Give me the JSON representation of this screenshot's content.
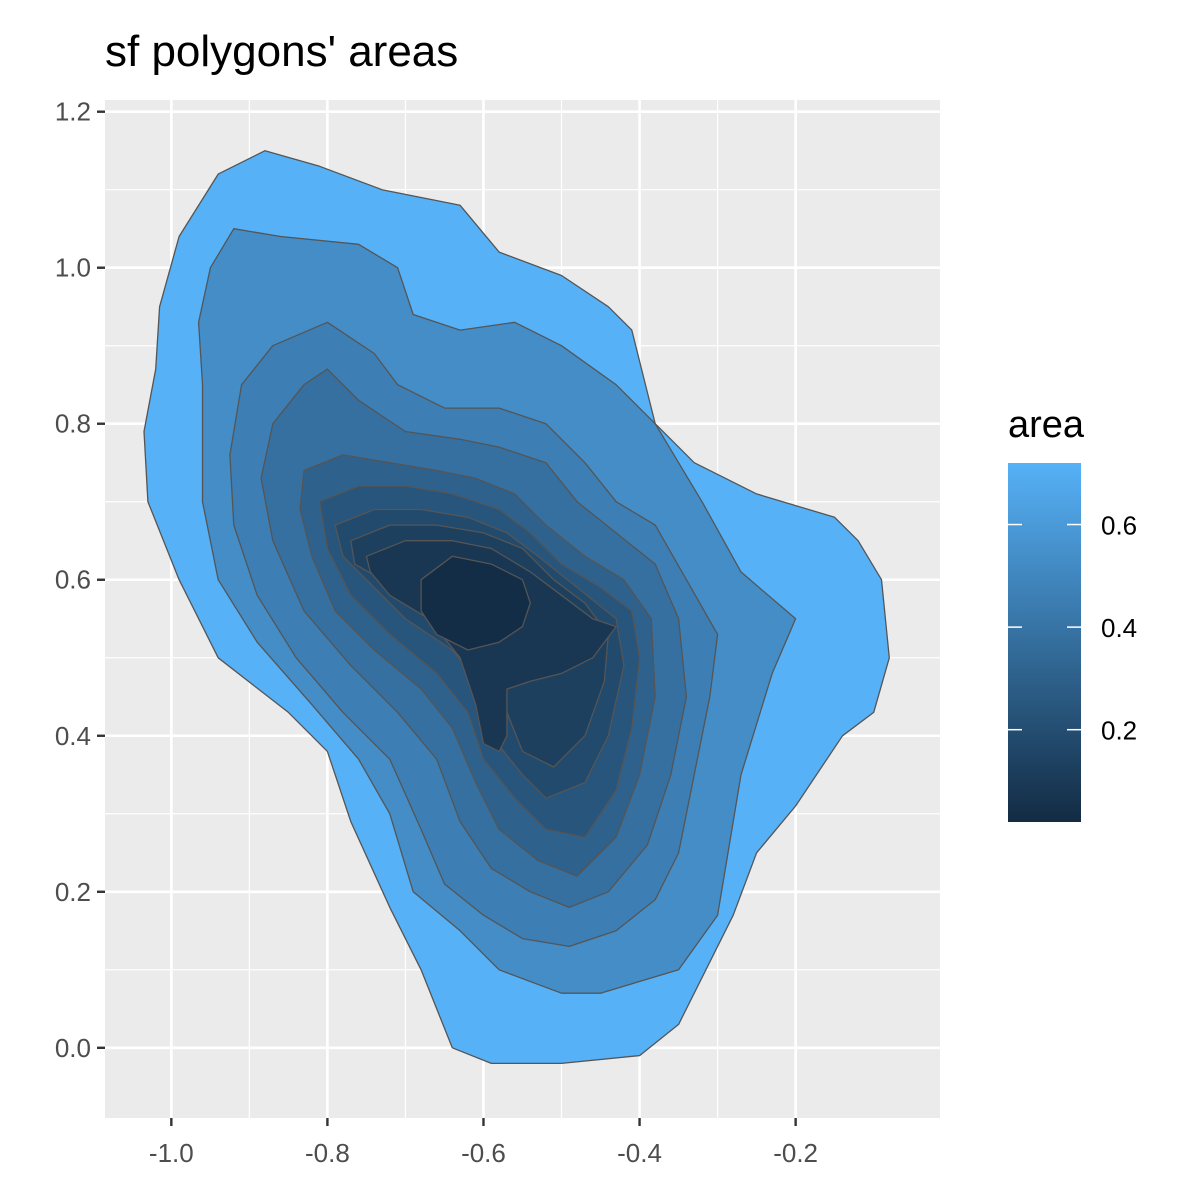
{
  "chart_data": {
    "type": "contour",
    "title": "sf polygons' areas",
    "xlabel": "",
    "ylabel": "",
    "xlim": [
      -1.085,
      -0.015
    ],
    "ylim": [
      -0.09,
      1.215
    ],
    "x_ticks": [
      -1.0,
      -0.8,
      -0.6,
      -0.4,
      -0.2
    ],
    "x_tick_labels": [
      "-1.0",
      "-0.8",
      "-0.6",
      "-0.4",
      "-0.2"
    ],
    "y_ticks": [
      0.0,
      0.2,
      0.4,
      0.6,
      0.8,
      1.0,
      1.2
    ],
    "y_tick_labels": [
      "0.0",
      "0.2",
      "0.4",
      "0.6",
      "0.8",
      "1.0",
      "1.2"
    ],
    "grid": true,
    "panel_background": "#ebebeb",
    "grid_color": "#ffffff",
    "outline_color": "#555555",
    "legend": {
      "title": "area",
      "position": "right",
      "min": 0.02,
      "max": 0.72,
      "ticks": [
        0.2,
        0.4,
        0.6
      ],
      "tick_labels": [
        "0.2",
        "0.4",
        "0.6"
      ],
      "color_low": "#132b43",
      "color_high": "#56b1f7"
    },
    "polygons": [
      {
        "area": 0.72,
        "points": [
          [
            -0.99,
            1.04
          ],
          [
            -0.94,
            1.12
          ],
          [
            -0.88,
            1.15
          ],
          [
            -0.81,
            1.13
          ],
          [
            -0.73,
            1.1
          ],
          [
            -0.63,
            1.08
          ],
          [
            -0.58,
            1.02
          ],
          [
            -0.5,
            0.99
          ],
          [
            -0.44,
            0.95
          ],
          [
            -0.41,
            0.92
          ],
          [
            -0.38,
            0.8
          ],
          [
            -0.33,
            0.75
          ],
          [
            -0.25,
            0.71
          ],
          [
            -0.15,
            0.68
          ],
          [
            -0.12,
            0.65
          ],
          [
            -0.09,
            0.6
          ],
          [
            -0.08,
            0.5
          ],
          [
            -0.1,
            0.43
          ],
          [
            -0.14,
            0.4
          ],
          [
            -0.2,
            0.31
          ],
          [
            -0.25,
            0.25
          ],
          [
            -0.28,
            0.17
          ],
          [
            -0.35,
            0.03
          ],
          [
            -0.4,
            -0.01
          ],
          [
            -0.5,
            -0.02
          ],
          [
            -0.59,
            -0.02
          ],
          [
            -0.64,
            0.0
          ],
          [
            -0.68,
            0.1
          ],
          [
            -0.72,
            0.18
          ],
          [
            -0.77,
            0.29
          ],
          [
            -0.8,
            0.38
          ],
          [
            -0.85,
            0.43
          ],
          [
            -0.94,
            0.5
          ],
          [
            -0.99,
            0.6
          ],
          [
            -1.03,
            0.7
          ],
          [
            -1.035,
            0.79
          ],
          [
            -1.02,
            0.87
          ],
          [
            -1.015,
            0.95
          ]
        ]
      },
      {
        "area": 0.53,
        "points": [
          [
            -0.95,
            1.0
          ],
          [
            -0.92,
            1.05
          ],
          [
            -0.86,
            1.04
          ],
          [
            -0.76,
            1.03
          ],
          [
            -0.71,
            1.0
          ],
          [
            -0.69,
            0.94
          ],
          [
            -0.63,
            0.92
          ],
          [
            -0.56,
            0.93
          ],
          [
            -0.5,
            0.9
          ],
          [
            -0.43,
            0.85
          ],
          [
            -0.38,
            0.8
          ],
          [
            -0.32,
            0.7
          ],
          [
            -0.27,
            0.61
          ],
          [
            -0.2,
            0.55
          ],
          [
            -0.23,
            0.48
          ],
          [
            -0.27,
            0.35
          ],
          [
            -0.3,
            0.17
          ],
          [
            -0.35,
            0.1
          ],
          [
            -0.45,
            0.07
          ],
          [
            -0.5,
            0.07
          ],
          [
            -0.58,
            0.1
          ],
          [
            -0.63,
            0.15
          ],
          [
            -0.69,
            0.2
          ],
          [
            -0.72,
            0.3
          ],
          [
            -0.76,
            0.37
          ],
          [
            -0.82,
            0.44
          ],
          [
            -0.89,
            0.52
          ],
          [
            -0.94,
            0.6
          ],
          [
            -0.96,
            0.7
          ],
          [
            -0.96,
            0.85
          ],
          [
            -0.965,
            0.93
          ]
        ]
      },
      {
        "area": 0.46,
        "points": [
          [
            -0.91,
            0.85
          ],
          [
            -0.87,
            0.9
          ],
          [
            -0.8,
            0.93
          ],
          [
            -0.74,
            0.89
          ],
          [
            -0.71,
            0.85
          ],
          [
            -0.65,
            0.82
          ],
          [
            -0.58,
            0.82
          ],
          [
            -0.52,
            0.8
          ],
          [
            -0.47,
            0.75
          ],
          [
            -0.43,
            0.7
          ],
          [
            -0.38,
            0.67
          ],
          [
            -0.34,
            0.6
          ],
          [
            -0.3,
            0.53
          ],
          [
            -0.31,
            0.45
          ],
          [
            -0.33,
            0.35
          ],
          [
            -0.35,
            0.25
          ],
          [
            -0.38,
            0.19
          ],
          [
            -0.43,
            0.15
          ],
          [
            -0.49,
            0.13
          ],
          [
            -0.55,
            0.14
          ],
          [
            -0.6,
            0.17
          ],
          [
            -0.65,
            0.21
          ],
          [
            -0.68,
            0.28
          ],
          [
            -0.72,
            0.37
          ],
          [
            -0.78,
            0.43
          ],
          [
            -0.84,
            0.5
          ],
          [
            -0.89,
            0.58
          ],
          [
            -0.92,
            0.67
          ],
          [
            -0.925,
            0.76
          ]
        ]
      },
      {
        "area": 0.38,
        "points": [
          [
            -0.87,
            0.8
          ],
          [
            -0.83,
            0.85
          ],
          [
            -0.8,
            0.87
          ],
          [
            -0.76,
            0.83
          ],
          [
            -0.7,
            0.79
          ],
          [
            -0.63,
            0.78
          ],
          [
            -0.58,
            0.77
          ],
          [
            -0.52,
            0.75
          ],
          [
            -0.48,
            0.7
          ],
          [
            -0.43,
            0.66
          ],
          [
            -0.38,
            0.62
          ],
          [
            -0.35,
            0.55
          ],
          [
            -0.34,
            0.45
          ],
          [
            -0.36,
            0.35
          ],
          [
            -0.39,
            0.26
          ],
          [
            -0.44,
            0.2
          ],
          [
            -0.49,
            0.18
          ],
          [
            -0.54,
            0.2
          ],
          [
            -0.59,
            0.23
          ],
          [
            -0.63,
            0.29
          ],
          [
            -0.66,
            0.37
          ],
          [
            -0.71,
            0.43
          ],
          [
            -0.77,
            0.49
          ],
          [
            -0.83,
            0.56
          ],
          [
            -0.87,
            0.65
          ],
          [
            -0.885,
            0.73
          ]
        ]
      },
      {
        "area": 0.3,
        "points": [
          [
            -0.83,
            0.74
          ],
          [
            -0.78,
            0.76
          ],
          [
            -0.72,
            0.75
          ],
          [
            -0.66,
            0.74
          ],
          [
            -0.61,
            0.73
          ],
          [
            -0.56,
            0.71
          ],
          [
            -0.52,
            0.67
          ],
          [
            -0.47,
            0.63
          ],
          [
            -0.42,
            0.6
          ],
          [
            -0.385,
            0.55
          ],
          [
            -0.38,
            0.45
          ],
          [
            -0.4,
            0.35
          ],
          [
            -0.43,
            0.27
          ],
          [
            -0.48,
            0.22
          ],
          [
            -0.53,
            0.24
          ],
          [
            -0.58,
            0.28
          ],
          [
            -0.61,
            0.34
          ],
          [
            -0.64,
            0.41
          ],
          [
            -0.68,
            0.46
          ],
          [
            -0.74,
            0.51
          ],
          [
            -0.79,
            0.56
          ],
          [
            -0.82,
            0.63
          ],
          [
            -0.835,
            0.69
          ]
        ]
      },
      {
        "area": 0.24,
        "points": [
          [
            -0.81,
            0.7
          ],
          [
            -0.76,
            0.72
          ],
          [
            -0.7,
            0.72
          ],
          [
            -0.64,
            0.71
          ],
          [
            -0.58,
            0.69
          ],
          [
            -0.54,
            0.66
          ],
          [
            -0.5,
            0.62
          ],
          [
            -0.45,
            0.59
          ],
          [
            -0.41,
            0.56
          ],
          [
            -0.4,
            0.5
          ],
          [
            -0.41,
            0.41
          ],
          [
            -0.43,
            0.33
          ],
          [
            -0.47,
            0.27
          ],
          [
            -0.52,
            0.28
          ],
          [
            -0.56,
            0.32
          ],
          [
            -0.6,
            0.37
          ],
          [
            -0.62,
            0.43
          ],
          [
            -0.66,
            0.48
          ],
          [
            -0.72,
            0.53
          ],
          [
            -0.77,
            0.58
          ],
          [
            -0.8,
            0.64
          ]
        ]
      },
      {
        "area": 0.18,
        "points": [
          [
            -0.79,
            0.67
          ],
          [
            -0.74,
            0.69
          ],
          [
            -0.68,
            0.69
          ],
          [
            -0.62,
            0.68
          ],
          [
            -0.57,
            0.66
          ],
          [
            -0.53,
            0.63
          ],
          [
            -0.48,
            0.59
          ],
          [
            -0.43,
            0.55
          ],
          [
            -0.42,
            0.49
          ],
          [
            -0.44,
            0.4
          ],
          [
            -0.47,
            0.34
          ],
          [
            -0.52,
            0.32
          ],
          [
            -0.55,
            0.35
          ],
          [
            -0.59,
            0.4
          ],
          [
            -0.6,
            0.46
          ],
          [
            -0.64,
            0.51
          ],
          [
            -0.7,
            0.55
          ],
          [
            -0.75,
            0.6
          ],
          [
            -0.78,
            0.63
          ]
        ]
      },
      {
        "area": 0.13,
        "points": [
          [
            -0.77,
            0.65
          ],
          [
            -0.72,
            0.67
          ],
          [
            -0.66,
            0.67
          ],
          [
            -0.6,
            0.66
          ],
          [
            -0.55,
            0.64
          ],
          [
            -0.51,
            0.6
          ],
          [
            -0.47,
            0.57
          ],
          [
            -0.44,
            0.53
          ],
          [
            -0.445,
            0.47
          ],
          [
            -0.47,
            0.4
          ],
          [
            -0.51,
            0.36
          ],
          [
            -0.55,
            0.38
          ],
          [
            -0.57,
            0.43
          ],
          [
            -0.58,
            0.48
          ],
          [
            -0.62,
            0.52
          ],
          [
            -0.68,
            0.56
          ],
          [
            -0.73,
            0.6
          ],
          [
            -0.765,
            0.62
          ]
        ]
      },
      {
        "area": 0.08,
        "points": [
          [
            -0.75,
            0.63
          ],
          [
            -0.7,
            0.65
          ],
          [
            -0.64,
            0.65
          ],
          [
            -0.59,
            0.64
          ],
          [
            -0.54,
            0.61
          ],
          [
            -0.5,
            0.58
          ],
          [
            -0.46,
            0.55
          ],
          [
            -0.43,
            0.54
          ],
          [
            -0.46,
            0.5
          ],
          [
            -0.5,
            0.48
          ],
          [
            -0.54,
            0.47
          ],
          [
            -0.57,
            0.46
          ],
          [
            -0.57,
            0.4
          ],
          [
            -0.58,
            0.38
          ],
          [
            -0.6,
            0.39
          ],
          [
            -0.61,
            0.44
          ],
          [
            -0.63,
            0.5
          ],
          [
            -0.67,
            0.55
          ],
          [
            -0.72,
            0.58
          ],
          [
            -0.745,
            0.61
          ]
        ]
      },
      {
        "area": 0.03,
        "points": [
          [
            -0.68,
            0.6
          ],
          [
            -0.64,
            0.63
          ],
          [
            -0.59,
            0.62
          ],
          [
            -0.55,
            0.6
          ],
          [
            -0.54,
            0.57
          ],
          [
            -0.55,
            0.54
          ],
          [
            -0.58,
            0.52
          ],
          [
            -0.62,
            0.51
          ],
          [
            -0.66,
            0.53
          ],
          [
            -0.68,
            0.56
          ]
        ]
      }
    ]
  }
}
